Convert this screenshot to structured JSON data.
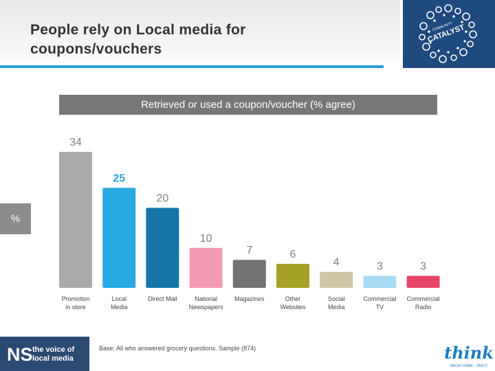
{
  "header": {
    "title_line1": "People rely on Local media for",
    "title_line2": "coupons/vouchers",
    "logo_text": "CATALYST",
    "logo_small_text": "COMMUNITY"
  },
  "chart_data": {
    "type": "bar",
    "title": "Retrieved or used a coupon/voucher (% agree)",
    "ylabel": "%",
    "categories": [
      [
        "Promotion",
        "in store"
      ],
      [
        "Local",
        "Media"
      ],
      [
        "Direct Mail"
      ],
      [
        "National",
        "Newspapers"
      ],
      [
        "Magazines"
      ],
      [
        "Other",
        "Websites"
      ],
      [
        "Social",
        "Media"
      ],
      [
        "Commercial",
        "TV"
      ],
      [
        "Commercial",
        "Radio"
      ]
    ],
    "values": [
      34,
      25,
      20,
      10,
      7,
      6,
      4,
      3,
      3
    ],
    "colors": [
      "#aaaaaa",
      "#29aae2",
      "#1776a8",
      "#f59ab4",
      "#737373",
      "#a7a027",
      "#cdc6a6",
      "#a8dcf5",
      "#e8456a"
    ],
    "label_colors": [
      "#808080",
      "#2b9fd8",
      "#808080",
      "#808080",
      "#808080",
      "#808080",
      "#808080",
      "#808080",
      "#808080"
    ],
    "ylim": [
      0,
      34
    ],
    "grid": false,
    "legend": "none"
  },
  "footer": {
    "base_note": "Base: All who answered grocery questions. Sample (874)",
    "ns_mark": "NS",
    "ns_line1": "the voice of",
    "ns_line2": "local media",
    "think_word": "think",
    "think_sub": "MEDIA COMM... TANCY"
  }
}
